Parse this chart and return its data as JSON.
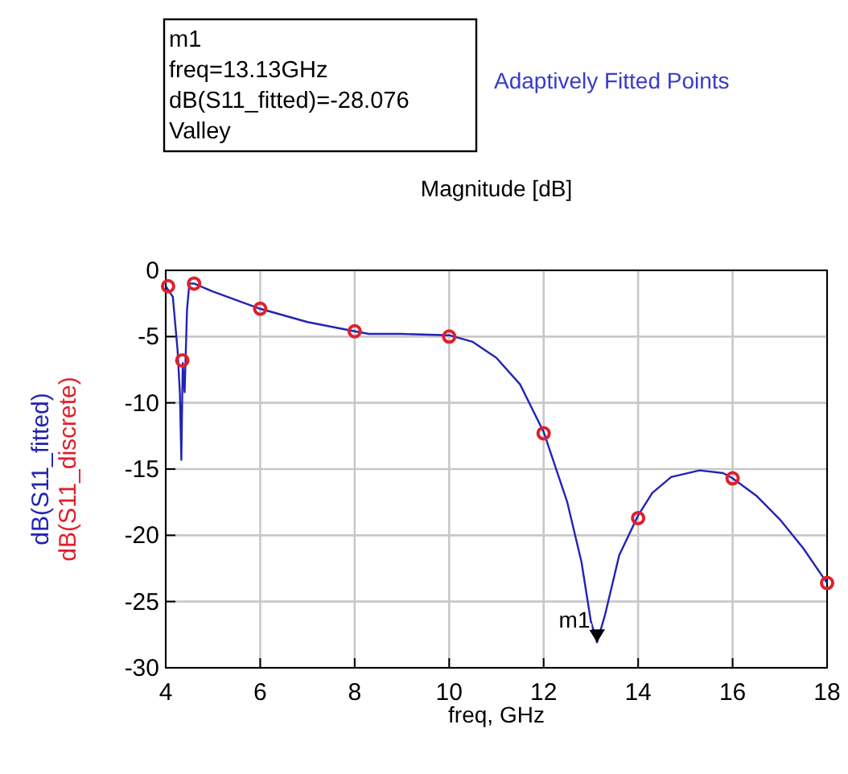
{
  "chart_data": {
    "type": "line",
    "title": "Magnitude [dB]",
    "xlabel": "freq, GHz",
    "annotations": [
      "m1\nfreq=13.13GHz\ndB(S11_fitted)=-28.076\nValley",
      "Adaptively Fitted Points",
      {
        "text": "m1",
        "x": 13.13,
        "y": -28.076
      }
    ],
    "xlim": [
      4,
      18
    ],
    "ylim": [
      -30,
      0
    ],
    "xticks": [
      4,
      6,
      8,
      10,
      12,
      14,
      16,
      18
    ],
    "yticks": [
      0,
      -5,
      -10,
      -15,
      -20,
      -25,
      -30
    ],
    "grid": true,
    "legend": "left",
    "series": [
      {
        "name": "dB(S11_fitted)",
        "type": "line",
        "color": "#2323b4",
        "marker": "none",
        "x": [
          4.0,
          4.15,
          4.25,
          4.3,
          4.33,
          4.36,
          4.4,
          4.45,
          4.5,
          4.6,
          5,
          6,
          7,
          8,
          8.3,
          9,
          10,
          10.5,
          11,
          11.5,
          12,
          12.5,
          12.8,
          13.0,
          13.13,
          13.3,
          13.6,
          14,
          14.3,
          14.7,
          15.3,
          15.8,
          16,
          16.5,
          17,
          17.5,
          18
        ],
        "values": [
          -1.2,
          -2,
          -6,
          -9.3,
          -14.3,
          -7,
          -9.2,
          -3,
          -1.0,
          -1.0,
          -1.6,
          -2.9,
          -3.9,
          -4.6,
          -4.8,
          -4.8,
          -4.9,
          -5.4,
          -6.6,
          -8.6,
          -12.2,
          -17.5,
          -22,
          -26.5,
          -28.076,
          -26,
          -21.5,
          -18.5,
          -16.8,
          -15.6,
          -15.1,
          -15.3,
          -15.7,
          -17,
          -18.8,
          -21,
          -23.6
        ]
      },
      {
        "name": "dB(S11_discrete)",
        "type": "scatter",
        "color": "#e0202a",
        "marker": "circle",
        "x": [
          4.05,
          4.35,
          4.6,
          6,
          8,
          10,
          12,
          14,
          16,
          18
        ],
        "values": [
          -1.2,
          -6.8,
          -1.0,
          -2.9,
          -4.6,
          -5.0,
          -12.3,
          -18.7,
          -15.7,
          -23.6
        ]
      }
    ]
  }
}
